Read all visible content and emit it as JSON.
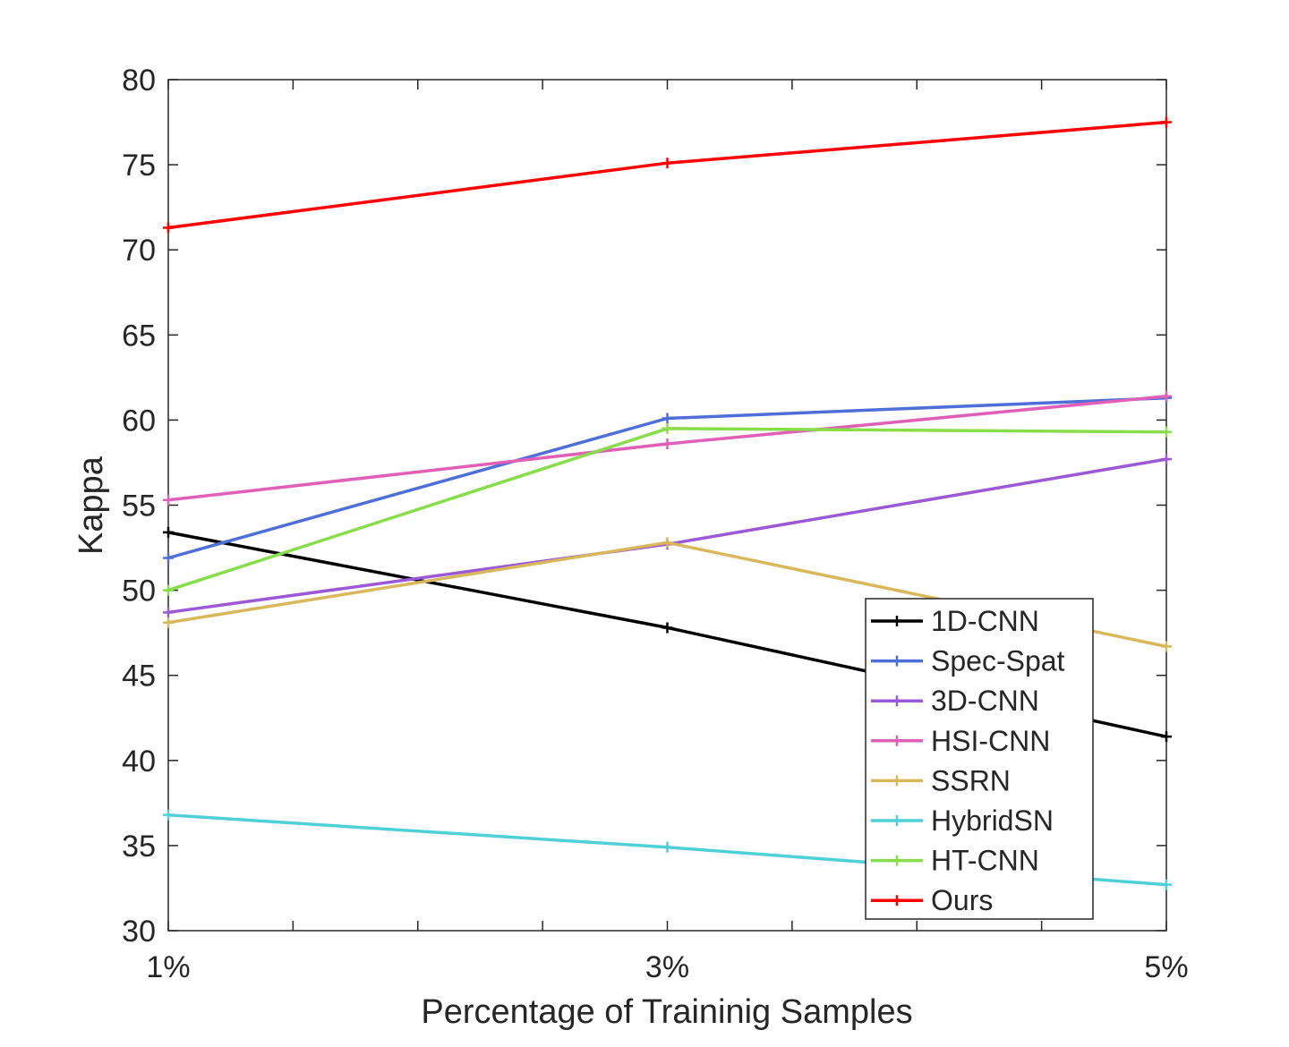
{
  "chart_data": {
    "type": "line",
    "title": "",
    "xlabel": "Percentage of Traininig Samples",
    "ylabel": "Kappa",
    "x": [
      1,
      3,
      5
    ],
    "x_tick_labels": [
      "1%",
      "3%",
      "5%"
    ],
    "x_minor_ticks": [
      1.5,
      2,
      2.5,
      3.5,
      4,
      4.5
    ],
    "xlim": [
      1,
      5
    ],
    "ylim": [
      30,
      80
    ],
    "y_ticks": [
      30,
      35,
      40,
      45,
      50,
      55,
      60,
      65,
      70,
      75,
      80
    ],
    "legend_position": "bottom-right",
    "series": [
      {
        "name": "1D-CNN",
        "color": "#000000",
        "values": [
          53.4,
          47.8,
          41.4
        ]
      },
      {
        "name": "Spec-Spat",
        "color": "#4f6fd8",
        "values": [
          51.9,
          60.1,
          61.3
        ]
      },
      {
        "name": "3D-CNN",
        "color": "#9b59d6",
        "values": [
          48.7,
          52.7,
          57.7
        ]
      },
      {
        "name": "HSI-CNN",
        "color": "#e060b8",
        "values": [
          55.3,
          58.6,
          61.4
        ]
      },
      {
        "name": "SSRN",
        "color": "#d8b85a",
        "values": [
          48.1,
          52.8,
          46.7
        ]
      },
      {
        "name": "HybridSN",
        "color": "#4fd0d8",
        "values": [
          36.8,
          34.9,
          32.7
        ]
      },
      {
        "name": "HT-CNN",
        "color": "#88dd4a",
        "values": [
          50.0,
          59.5,
          59.3
        ]
      },
      {
        "name": "Ours",
        "color": "#ff0000",
        "values": [
          71.3,
          75.1,
          77.5
        ]
      }
    ]
  }
}
